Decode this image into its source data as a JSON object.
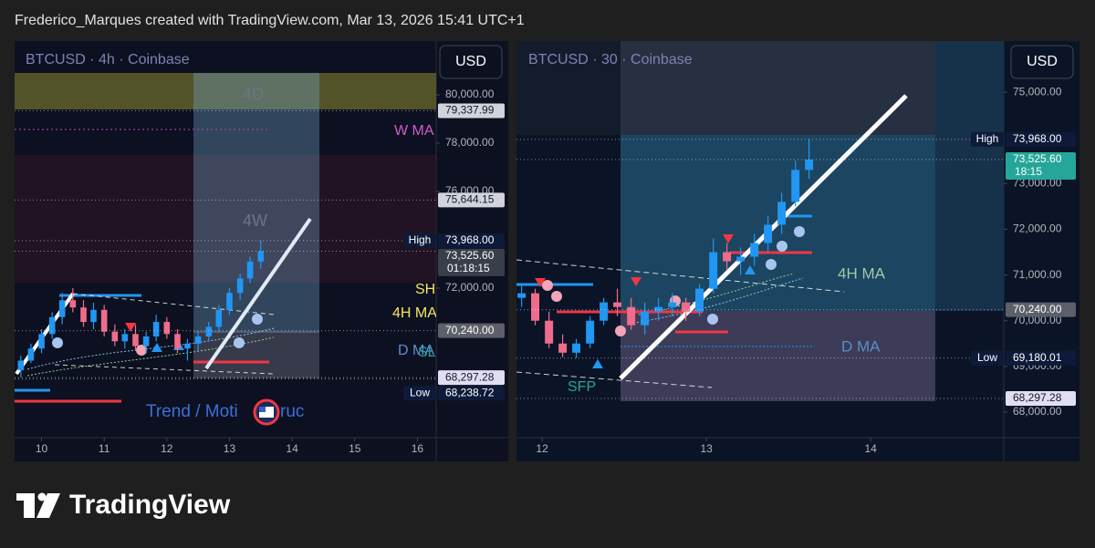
{
  "header": {
    "text": "Frederico_Marques created with TradingView.com, Mar 13, 2026 15:41 UTC+1"
  },
  "footer": {
    "brand": "TradingView"
  },
  "chart_data": [
    {
      "type": "candlestick",
      "title": "BTCUSD · 4h · Coinbase",
      "currency": "USD",
      "up_color": "#2196f3",
      "down_color": "#ef6c8c",
      "xlim": [
        9.57,
        16.3
      ],
      "xticks": [
        10,
        11,
        12,
        13,
        14,
        15,
        16
      ],
      "ylim": [
        65811,
        82226
      ],
      "yticks": [
        {
          "value": 80000,
          "label": "80,000.00"
        },
        {
          "value": 78000,
          "label": "78,000.00"
        },
        {
          "value": 76000,
          "label": "76,000.00"
        },
        {
          "value": 72000,
          "label": "72,000.00"
        }
      ],
      "x": [
        9.67,
        9.83,
        10.0,
        10.17,
        10.33,
        10.5,
        10.67,
        10.83,
        11.0,
        11.17,
        11.33,
        11.5,
        11.67,
        11.83,
        12.0,
        12.17,
        12.33,
        12.5,
        12.67,
        12.83,
        13.0,
        13.17,
        13.33,
        13.5
      ],
      "open": [
        68600,
        69000,
        69500,
        70100,
        70800,
        71500,
        71200,
        70600,
        71100,
        70200,
        69800,
        70100,
        69600,
        70000,
        70600,
        70100,
        69500,
        69700,
        70000,
        70400,
        71100,
        71800,
        72400,
        73100
      ],
      "high": [
        69200,
        69700,
        70300,
        71000,
        71800,
        72000,
        71500,
        71400,
        71300,
        70500,
        70300,
        70500,
        70200,
        70900,
        70800,
        70300,
        69900,
        70200,
        70600,
        71300,
        72000,
        72600,
        73300,
        73968
      ],
      "low": [
        68300,
        68900,
        69300,
        69900,
        70500,
        71000,
        70400,
        70300,
        70000,
        69600,
        69500,
        69400,
        69300,
        69800,
        69900,
        69300,
        69000,
        69400,
        69800,
        70200,
        70900,
        71500,
        72200,
        72800
      ],
      "close": [
        69000,
        69500,
        70100,
        70800,
        71500,
        71200,
        70600,
        71100,
        70200,
        69800,
        70100,
        69600,
        70000,
        70600,
        70100,
        69500,
        69700,
        70000,
        70400,
        71100,
        71800,
        72400,
        73100,
        73525.6
      ],
      "price_labels": [
        {
          "value": 79337.99,
          "label": "79,337.99",
          "color": "#d1d4dc",
          "text_color": "#131722"
        },
        {
          "value": 75644.15,
          "label": "75,644.15",
          "color": "#d1d4dc",
          "text_color": "#131722"
        },
        {
          "value": 73968,
          "label": "73,968.00",
          "tag": "High",
          "color": "#0e1a3a",
          "text_color": "#ffffff"
        },
        {
          "value": 73525.6,
          "label": "73,525.60",
          "timer": "01:18:15",
          "color": "#3a3e4a",
          "text_color": "#ffffff"
        },
        {
          "value": 70240,
          "label": "70,240.00",
          "color": "#5d606b",
          "text_color": "#ffffff"
        },
        {
          "value": 68297.28,
          "label": "68,297.28",
          "color": "#e1def3",
          "text_color": "#131722"
        },
        {
          "value": 68238.72,
          "label": "68,238.72",
          "tag": "Low",
          "color": "#0e1a3a",
          "text_color": "#ffffff"
        }
      ],
      "annotations": [
        {
          "text": "4D",
          "color": "#6d7486"
        },
        {
          "text": "W MA",
          "color": "#d05bd0"
        },
        {
          "text": "4W",
          "color": "#6d7486"
        },
        {
          "text": "SH",
          "color": "#f5e663"
        },
        {
          "text": "4H MA",
          "color": "#f5e663"
        },
        {
          "text": "D MA",
          "color": "#5c8fd6"
        },
        {
          "text": "SL",
          "color": "#26a69a"
        },
        {
          "text": "Trend / Moti",
          "color": "#3d6fd8"
        },
        {
          "text": "ruc",
          "color": "#3d6fd8"
        }
      ]
    },
    {
      "type": "candlestick",
      "title": "BTCUSD · 30 · Coinbase",
      "currency": "USD",
      "up_color": "#2196f3",
      "down_color": "#ef6c8c",
      "xlim": [
        11.844,
        14.81
      ],
      "xticks": [
        12,
        13,
        14
      ],
      "ylim": [
        67440,
        76120
      ],
      "yticks": [
        {
          "value": 75000,
          "label": "75,000.00"
        },
        {
          "value": 73000,
          "label": "73,000.00"
        },
        {
          "value": 72000,
          "label": "72,000.00"
        },
        {
          "value": 71000,
          "label": "71,000.00"
        },
        {
          "value": 70000,
          "label": "70,000.00"
        },
        {
          "value": 69000,
          "label": "69,000.00"
        },
        {
          "value": 68000,
          "label": "68,000.00"
        }
      ],
      "x": [
        11.875,
        11.958,
        12.042,
        12.125,
        12.208,
        12.292,
        12.375,
        12.458,
        12.542,
        12.625,
        12.708,
        12.792,
        12.875,
        12.958,
        13.042,
        13.125,
        13.208,
        13.292,
        13.375,
        13.458,
        13.542,
        13.625
      ],
      "open": [
        70500,
        70600,
        70000,
        69500,
        69300,
        69500,
        70000,
        70400,
        70300,
        69900,
        70200,
        70300,
        70400,
        70200,
        70700,
        71500,
        71300,
        71400,
        71700,
        72100,
        72600,
        73300
      ],
      "high": [
        70800,
        70700,
        70200,
        69700,
        69600,
        70100,
        70500,
        70700,
        70500,
        70400,
        70500,
        70600,
        70500,
        70800,
        71800,
        71700,
        71600,
        71900,
        72300,
        72800,
        73500,
        73968
      ],
      "low": [
        70300,
        69900,
        69400,
        69200,
        69180.01,
        69400,
        69900,
        70100,
        69800,
        69700,
        70000,
        70100,
        70000,
        70100,
        70600,
        71100,
        71000,
        71200,
        71500,
        71900,
        72500,
        73100
      ],
      "close": [
        70600,
        70000,
        69500,
        69300,
        69500,
        70000,
        70400,
        70300,
        69900,
        70200,
        70300,
        70400,
        70200,
        70700,
        71500,
        71300,
        71400,
        71700,
        72100,
        72600,
        73300,
        73525.6
      ],
      "price_labels": [
        {
          "value": 73968,
          "label": "73,968.00",
          "tag": "High",
          "color": "#0e1a3a",
          "text_color": "#ffffff"
        },
        {
          "value": 73525.6,
          "label": "73,525.60",
          "timer": "18:15",
          "color": "#26a69a",
          "text_color": "#ffffff"
        },
        {
          "value": 70240,
          "label": "70,240.00",
          "color": "#5d606b",
          "text_color": "#ffffff"
        },
        {
          "value": 69180.01,
          "label": "69,180.01",
          "tag": "Low",
          "color": "#0e1a3a",
          "text_color": "#ffffff"
        },
        {
          "value": 68297.28,
          "label": "68,297.28",
          "color": "#e1def3",
          "text_color": "#131722"
        }
      ],
      "annotations": [
        {
          "text": "4H MA",
          "color": "#9fc9a8"
        },
        {
          "text": "D MA",
          "color": "#5a8fc9"
        },
        {
          "text": "SFP",
          "color": "#26a69a"
        }
      ]
    }
  ]
}
